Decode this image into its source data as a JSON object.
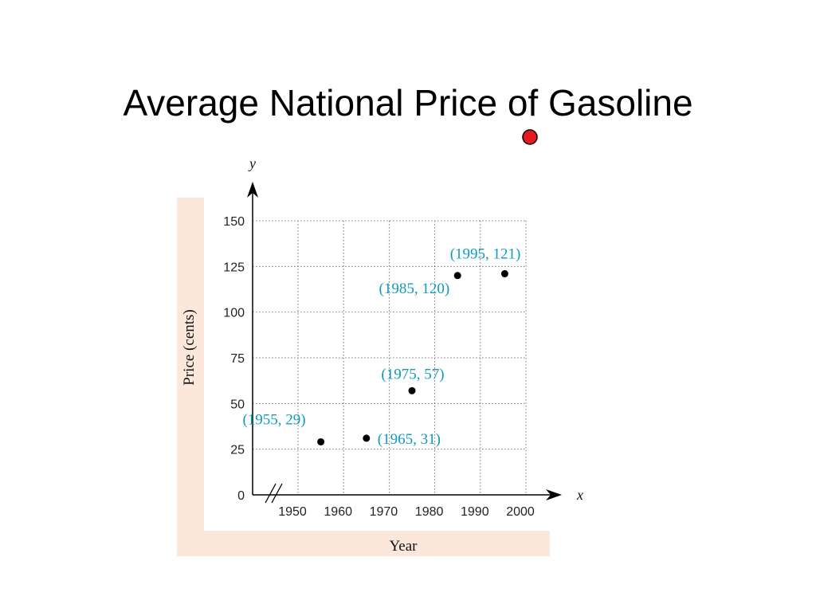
{
  "slide": {
    "title": "Average National Price of Gasoline"
  },
  "colors": {
    "panel": "#fbe8da",
    "label": "#0e9bbf",
    "grid": "#777777",
    "marker": "#e41a1c",
    "point": "#000000"
  },
  "chart_data": {
    "type": "scatter",
    "title": "",
    "xlabel": "Year",
    "ylabel": "Price (cents)",
    "x_var": "x",
    "y_var": "y",
    "xlim": [
      1945,
      2000
    ],
    "ylim": [
      0,
      150
    ],
    "x_ticks": [
      1950,
      1960,
      1970,
      1980,
      1990,
      2000
    ],
    "y_ticks": [
      0,
      25,
      50,
      75,
      100,
      125,
      150
    ],
    "axis_break": "x",
    "grid": true,
    "points": [
      {
        "x": 1955,
        "y": 29,
        "label": "(1955, 29)"
      },
      {
        "x": 1965,
        "y": 31,
        "label": "(1965, 31)"
      },
      {
        "x": 1975,
        "y": 57,
        "label": "(1975, 57)"
      },
      {
        "x": 1985,
        "y": 120,
        "label": "(1985, 120)"
      },
      {
        "x": 1995,
        "y": 121,
        "label": "(1995, 121)"
      }
    ]
  }
}
